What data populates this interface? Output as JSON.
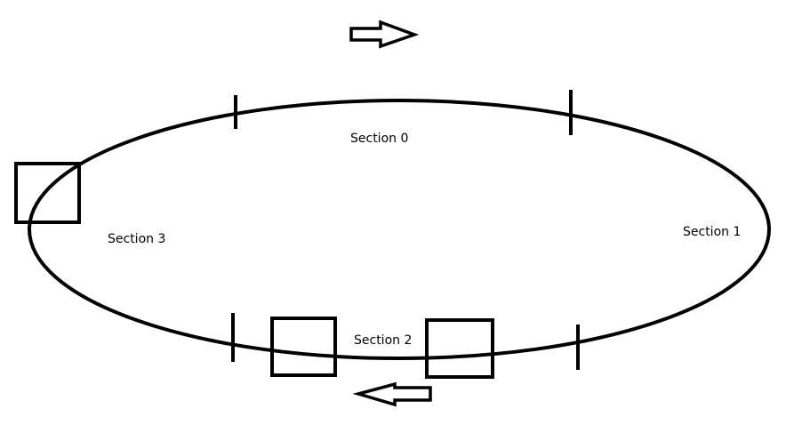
{
  "diagram": {
    "sections": [
      {
        "id": "s0",
        "label": "Section 0"
      },
      {
        "id": "s1",
        "label": "Section 1"
      },
      {
        "id": "s2",
        "label": "Section 2"
      },
      {
        "id": "s3",
        "label": "Section 3"
      }
    ],
    "stroke_color": "#000000",
    "background_color": "#ffffff"
  }
}
